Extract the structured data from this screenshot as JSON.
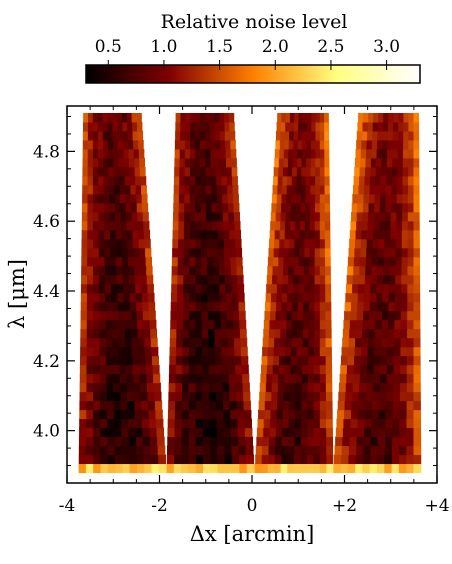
{
  "chart_data": {
    "type": "heatmap",
    "title": "",
    "xlabel": "Δx [arcmin]",
    "ylabel": "λ [μm]",
    "xlim": [
      -4,
      4
    ],
    "ylim": [
      3.85,
      4.93
    ],
    "x_ticks": [
      {
        "value": -4,
        "label": "-4"
      },
      {
        "value": -2,
        "label": "-2"
      },
      {
        "value": 0,
        "label": "0"
      },
      {
        "value": 2,
        "label": "+2"
      },
      {
        "value": 4,
        "label": "+4"
      }
    ],
    "y_ticks": [
      {
        "value": 4.0,
        "label": "4.0"
      },
      {
        "value": 4.2,
        "label": "4.2"
      },
      {
        "value": 4.4,
        "label": "4.4"
      },
      {
        "value": 4.6,
        "label": "4.6"
      },
      {
        "value": 4.8,
        "label": "4.8"
      }
    ],
    "colorbar": {
      "label": "Relative noise level",
      "colormap": "afmhot",
      "range": [
        0.3,
        3.3
      ],
      "ticks": [
        {
          "value": 0.5,
          "label": "0.5"
        },
        {
          "value": 1.0,
          "label": "1.0"
        },
        {
          "value": 1.5,
          "label": "1.5"
        },
        {
          "value": 2.0,
          "label": "2.0"
        },
        {
          "value": 2.5,
          "label": "2.5"
        },
        {
          "value": 3.0,
          "label": "3.0"
        }
      ]
    },
    "bands": [
      {
        "x_left_bottom": -3.75,
        "x_right_bottom": -1.85,
        "x_left_top": -3.65,
        "x_right_top": -2.4,
        "center_value": 0.65,
        "edge_value": 1.45
      },
      {
        "x_left_bottom": -1.85,
        "x_right_bottom": 0.05,
        "x_left_top": -1.65,
        "x_right_top": -0.4,
        "center_value": 0.6,
        "edge_value": 1.35
      },
      {
        "x_left_bottom": 0.05,
        "x_right_bottom": 1.75,
        "x_left_top": 0.55,
        "x_right_top": 1.65,
        "center_value": 0.8,
        "edge_value": 1.7
      },
      {
        "x_left_bottom": 1.75,
        "x_right_bottom": 3.65,
        "x_left_top": 2.3,
        "x_right_top": 3.6,
        "center_value": 0.8,
        "edge_value": 1.75
      }
    ],
    "wavelength_range": [
      3.88,
      4.91
    ],
    "bottom_edge_value": 2.2,
    "grid": false
  }
}
